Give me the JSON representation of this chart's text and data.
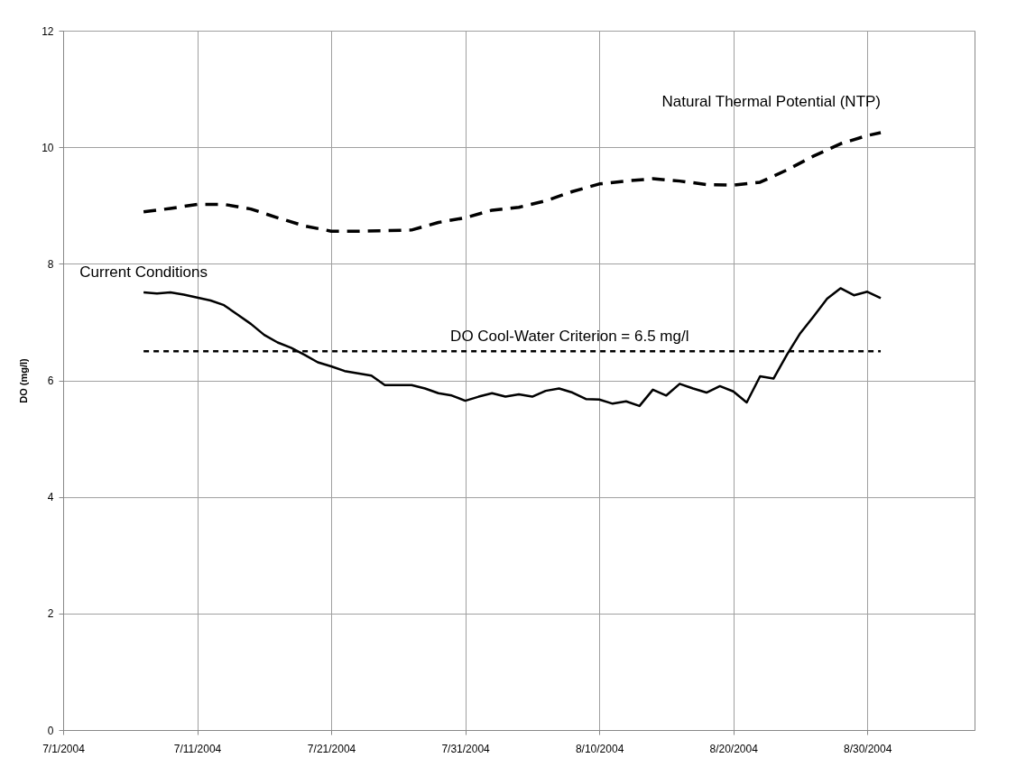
{
  "chart_data": {
    "type": "line",
    "ylabel": "DO (mg/l)",
    "xlim": [
      "2004-07-01",
      "2004-09-07"
    ],
    "xticks": [
      {
        "value": "2004-07-01",
        "label": "7/1/2004"
      },
      {
        "value": "2004-07-11",
        "label": "7/11/2004"
      },
      {
        "value": "2004-07-21",
        "label": "7/21/2004"
      },
      {
        "value": "2004-07-31",
        "label": "7/31/2004"
      },
      {
        "value": "2004-08-10",
        "label": "8/10/2004"
      },
      {
        "value": "2004-08-20",
        "label": "8/20/2004"
      },
      {
        "value": "2004-08-30",
        "label": "8/30/2004"
      }
    ],
    "ylim": [
      0,
      12
    ],
    "yticks": [
      0,
      2,
      4,
      6,
      8,
      10,
      12
    ],
    "grid": true,
    "marker": "none",
    "series": [
      {
        "name": "Current Conditions",
        "color": "#000000",
        "line_style": "solid",
        "x": [
          "2004-07-07",
          "2004-07-08",
          "2004-07-09",
          "2004-07-10",
          "2004-07-11",
          "2004-07-12",
          "2004-07-13",
          "2004-07-14",
          "2004-07-15",
          "2004-07-16",
          "2004-07-17",
          "2004-07-18",
          "2004-07-19",
          "2004-07-20",
          "2004-07-21",
          "2004-07-22",
          "2004-07-23",
          "2004-07-24",
          "2004-07-25",
          "2004-07-26",
          "2004-07-27",
          "2004-07-28",
          "2004-07-29",
          "2004-07-30",
          "2004-07-31",
          "2004-08-01",
          "2004-08-02",
          "2004-08-03",
          "2004-08-04",
          "2004-08-05",
          "2004-08-06",
          "2004-08-07",
          "2004-08-08",
          "2004-08-09",
          "2004-08-10",
          "2004-08-11",
          "2004-08-12",
          "2004-08-13",
          "2004-08-14",
          "2004-08-15",
          "2004-08-16",
          "2004-08-17",
          "2004-08-18",
          "2004-08-19",
          "2004-08-20",
          "2004-08-21",
          "2004-08-22",
          "2004-08-23",
          "2004-08-24",
          "2004-08-25",
          "2004-08-26",
          "2004-08-27",
          "2004-08-28",
          "2004-08-29",
          "2004-08-30",
          "2004-08-31"
        ],
        "values": [
          7.51,
          7.49,
          7.51,
          7.47,
          7.42,
          7.37,
          7.29,
          7.13,
          6.97,
          6.78,
          6.65,
          6.56,
          6.44,
          6.31,
          6.24,
          6.16,
          6.12,
          6.08,
          5.92,
          5.92,
          5.92,
          5.86,
          5.78,
          5.74,
          5.65,
          5.72,
          5.78,
          5.72,
          5.76,
          5.72,
          5.82,
          5.86,
          5.79,
          5.68,
          5.67,
          5.6,
          5.64,
          5.56,
          5.84,
          5.74,
          5.94,
          5.86,
          5.79,
          5.9,
          5.81,
          5.62,
          6.07,
          6.03,
          6.44,
          6.81,
          7.1,
          7.4,
          7.58,
          7.46,
          7.52,
          7.41
        ]
      },
      {
        "name": "Natural Thermal Potential (NTP)",
        "color": "#000000",
        "line_style": "dashed",
        "x": [
          "2004-07-07",
          "2004-07-09",
          "2004-07-11",
          "2004-07-13",
          "2004-07-15",
          "2004-07-17",
          "2004-07-19",
          "2004-07-21",
          "2004-07-23",
          "2004-07-25",
          "2004-07-27",
          "2004-07-29",
          "2004-07-31",
          "2004-08-02",
          "2004-08-04",
          "2004-08-06",
          "2004-08-08",
          "2004-08-10",
          "2004-08-12",
          "2004-08-14",
          "2004-08-16",
          "2004-08-18",
          "2004-08-20",
          "2004-08-22",
          "2004-08-24",
          "2004-08-26",
          "2004-08-28",
          "2004-08-30",
          "2004-08-31"
        ],
        "values": [
          8.89,
          8.95,
          9.02,
          9.02,
          8.94,
          8.79,
          8.65,
          8.56,
          8.56,
          8.57,
          8.58,
          8.71,
          8.79,
          8.92,
          8.97,
          9.08,
          9.24,
          9.37,
          9.42,
          9.46,
          9.42,
          9.36,
          9.35,
          9.4,
          9.61,
          9.85,
          10.06,
          10.2,
          10.25
        ]
      },
      {
        "name": "DO Cool-Water Criterion = 6.5 mg/l",
        "color": "#000000",
        "line_style": "dotted",
        "x": [
          "2004-07-07",
          "2004-08-31"
        ],
        "values": [
          6.5,
          6.5
        ]
      }
    ]
  }
}
